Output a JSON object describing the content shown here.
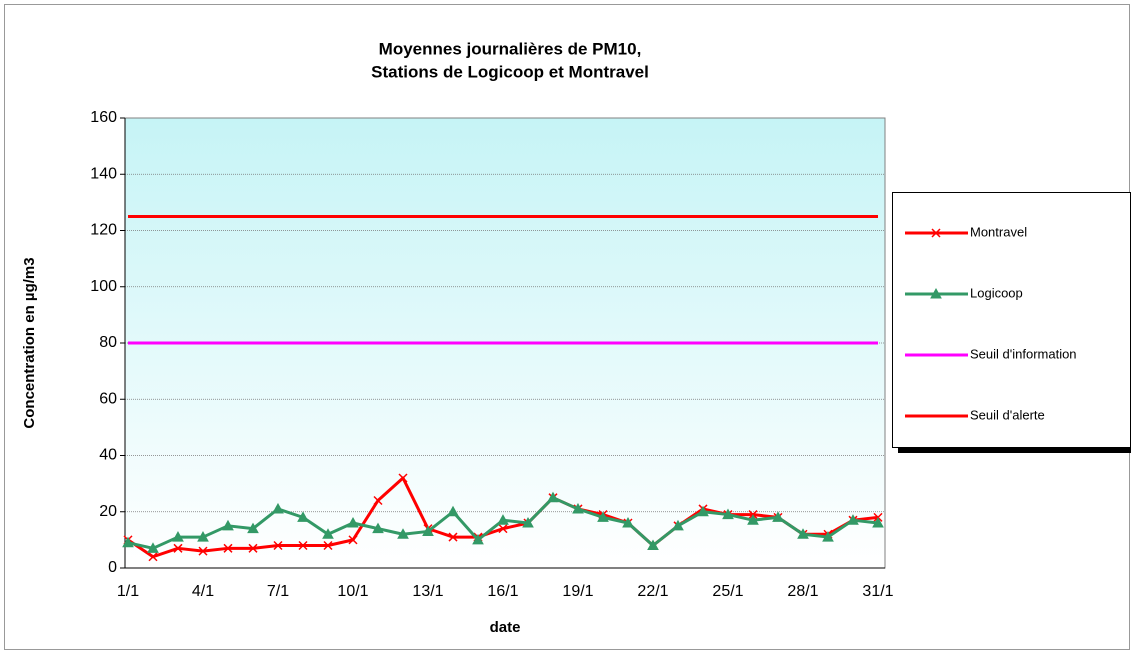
{
  "chart_data": {
    "type": "line",
    "title": [
      "Moyennes journalières de PM10,",
      "Stations de Logicoop et Montravel"
    ],
    "x_label": "date",
    "y_label": "Concentration en µg/m3",
    "categories": [
      "1/1",
      null,
      null,
      "4/1",
      null,
      null,
      "7/1",
      null,
      null,
      "10/1",
      null,
      null,
      "13/1",
      null,
      null,
      "16/1",
      null,
      null,
      "19/1",
      null,
      null,
      "22/1",
      null,
      null,
      "25/1",
      null,
      null,
      "28/1",
      null,
      null,
      "31/1"
    ],
    "series": [
      {
        "name": "Montravel",
        "color": "#ff0000",
        "marker": "x",
        "values": [
          10,
          4,
          7,
          6,
          7,
          7,
          8,
          8,
          8,
          10,
          24,
          32,
          14,
          11,
          11,
          14,
          16,
          25,
          21,
          19,
          16,
          8,
          15,
          21,
          19,
          19,
          18,
          12,
          12,
          17,
          18
        ]
      },
      {
        "name": "Logicoop",
        "color": "#339966",
        "marker": "triangle",
        "values": [
          9,
          7,
          11,
          11,
          15,
          14,
          21,
          18,
          12,
          16,
          14,
          12,
          13,
          20,
          10,
          17,
          16,
          25,
          21,
          18,
          16,
          8,
          15,
          20,
          19,
          17,
          18,
          12,
          11,
          17,
          16
        ]
      },
      {
        "name": "Seuil d'information",
        "color": "#ff00ff",
        "values": [
          80,
          80,
          80,
          80,
          80,
          80,
          80,
          80,
          80,
          80,
          80,
          80,
          80,
          80,
          80,
          80,
          80,
          80,
          80,
          80,
          80,
          80,
          80,
          80,
          80,
          80,
          80,
          80,
          80,
          80,
          80
        ]
      },
      {
        "name": "Seuil d'alerte",
        "color": "#ff0000",
        "values": [
          125,
          125,
          125,
          125,
          125,
          125,
          125,
          125,
          125,
          125,
          125,
          125,
          125,
          125,
          125,
          125,
          125,
          125,
          125,
          125,
          125,
          125,
          125,
          125,
          125,
          125,
          125,
          125,
          125,
          125,
          125
        ]
      }
    ],
    "ylim": [
      0,
      160
    ],
    "yticks": [
      0,
      20,
      40,
      60,
      80,
      100,
      120,
      140,
      160
    ],
    "grid": true,
    "legend": "right"
  }
}
